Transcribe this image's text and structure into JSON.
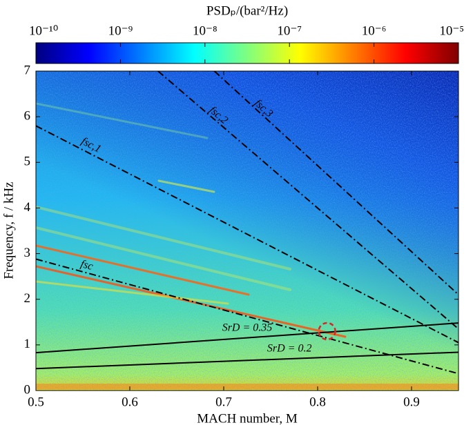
{
  "chart_data": {
    "type": "spectrogram",
    "colorbar": {
      "title": "PSDₚ/(bar²/Hz)",
      "log": true,
      "lim": [
        1e-10,
        1e-05
      ],
      "ticks": [
        {
          "value": 1e-10,
          "label": "10⁻¹⁰"
        },
        {
          "value": 1e-09,
          "label": "10⁻⁹"
        },
        {
          "value": 1e-08,
          "label": "10⁻⁸"
        },
        {
          "value": 1e-07,
          "label": "10⁻⁷"
        },
        {
          "value": 1e-06,
          "label": "10⁻⁶"
        },
        {
          "value": 1e-05,
          "label": "10⁻⁵"
        }
      ],
      "colormap": [
        "#00007f",
        "#0000ff",
        "#007fff",
        "#00ffff",
        "#7fff7f",
        "#ffff00",
        "#ff7f00",
        "#ff0000",
        "#7f0000"
      ]
    },
    "x_label": "MACH number, M",
    "y_label": "Frequency, f / kHz",
    "xlim": [
      0.5,
      0.95
    ],
    "ylim": [
      0,
      7
    ],
    "xticks": [
      0.5,
      0.6,
      0.7,
      0.8,
      0.9
    ],
    "yticks": [
      0,
      1,
      2,
      3,
      4,
      5,
      6,
      7
    ],
    "series": [
      {
        "name": "fsc",
        "color": "#000000",
        "style": "dashdot",
        "x": [
          0.5,
          0.95
        ],
        "values": [
          2.88,
          0.37
        ]
      },
      {
        "name": "fsc,1",
        "color": "#000000",
        "style": "dashdot",
        "x": [
          0.5,
          0.95
        ],
        "values": [
          5.8,
          1.05
        ]
      },
      {
        "name": "fsc,2",
        "color": "#000000",
        "style": "dashdot",
        "x": [
          0.63,
          0.95
        ],
        "values": [
          7,
          1.35
        ]
      },
      {
        "name": "fsc,3",
        "color": "#000000",
        "style": "dashdot",
        "x": [
          0.69,
          0.95
        ],
        "values": [
          7,
          2.1
        ]
      },
      {
        "name": "SrD = 0.35",
        "color": "#000000",
        "style": "solid",
        "x": [
          0.5,
          0.95
        ],
        "values": [
          0.83,
          1.48
        ]
      },
      {
        "name": "SrD = 0.2",
        "color": "#000000",
        "style": "solid",
        "x": [
          0.5,
          0.95
        ],
        "values": [
          0.48,
          0.84
        ]
      }
    ],
    "highlight": {
      "x": 0.81,
      "y": 1.3,
      "color": "#d62728"
    }
  }
}
